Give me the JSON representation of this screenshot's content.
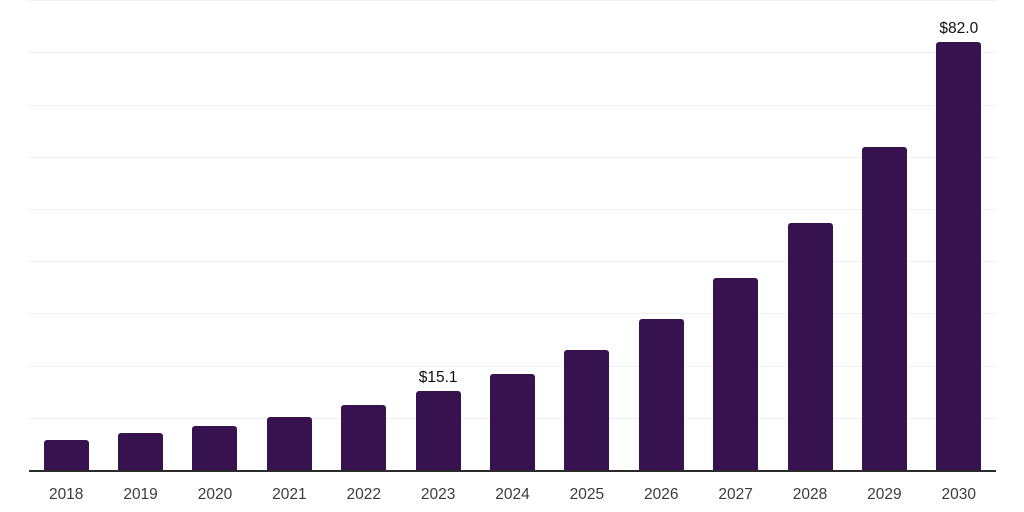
{
  "chart_data": {
    "type": "bar",
    "title": "",
    "xlabel": "",
    "ylabel": "",
    "categories": [
      "2018",
      "2019",
      "2020",
      "2021",
      "2022",
      "2023",
      "2024",
      "2025",
      "2026",
      "2027",
      "2028",
      "2029",
      "2030"
    ],
    "values": [
      5.7,
      7.1,
      8.5,
      10.2,
      12.4,
      15.1,
      18.4,
      23.0,
      28.9,
      36.8,
      47.3,
      61.9,
      82.0
    ],
    "annotations": [
      {
        "category": "2023",
        "text": "$15.1"
      },
      {
        "category": "2030",
        "text": "$82.0"
      }
    ],
    "ylim": [
      0,
      90
    ],
    "gridline_step": 10,
    "grid": true,
    "legend_position": "none",
    "bar_color": "#36124E",
    "gridline_color": "#f0f0f0",
    "axis_line_color": "#2b2b2b",
    "tick_label_color": "#3b3b3b",
    "data_label_color": "#111111",
    "background_color": "#ffffff"
  }
}
